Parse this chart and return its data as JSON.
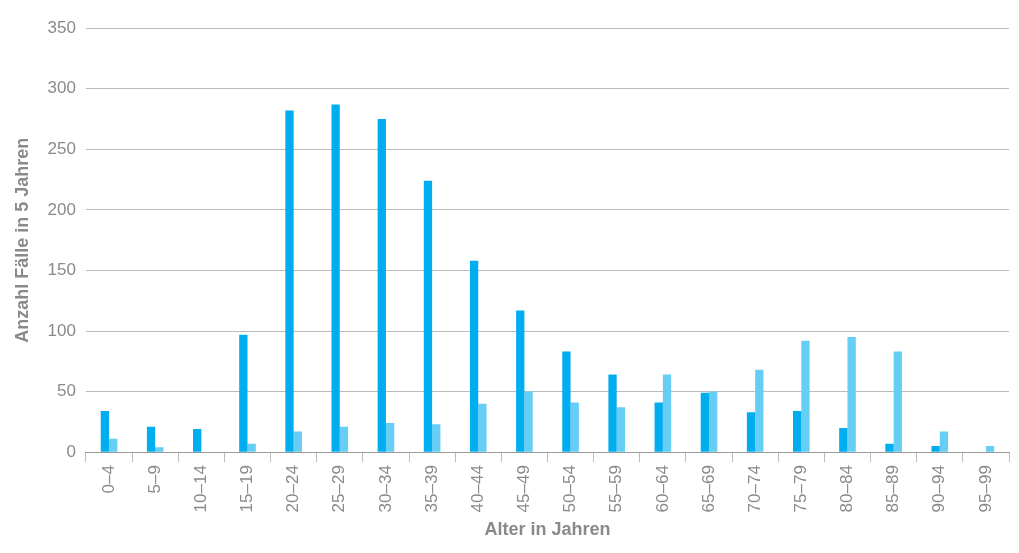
{
  "chart_data": {
    "type": "bar",
    "xlabel": "Alter in Jahren",
    "ylabel": "Anzahl Fälle in 5 Jahren",
    "categories": [
      "0–4",
      "5–9",
      "10–14",
      "15–19",
      "20–24",
      "25–29",
      "30–34",
      "35–39",
      "40–44",
      "45–49",
      "50–54",
      "55–59",
      "60–64",
      "65–69",
      "70–74",
      "75–79",
      "80–84",
      "85–89",
      "90–94",
      "95–99"
    ],
    "series": [
      {
        "color": "#00aeef",
        "values": [
          34,
          21,
          19,
          97,
          282,
          287,
          275,
          224,
          158,
          117,
          83,
          64,
          41,
          49,
          33,
          34,
          20,
          7,
          5,
          0
        ]
      },
      {
        "color": "#66cdf5",
        "values": [
          11,
          4,
          0,
          7,
          17,
          21,
          24,
          23,
          40,
          50,
          41,
          37,
          64,
          50,
          68,
          92,
          95,
          83,
          17,
          5
        ]
      }
    ],
    "ylim": [
      0,
      350
    ],
    "yticks": [
      0,
      50,
      100,
      150,
      200,
      250,
      300,
      350
    ],
    "grid": "y",
    "legend": false
  }
}
